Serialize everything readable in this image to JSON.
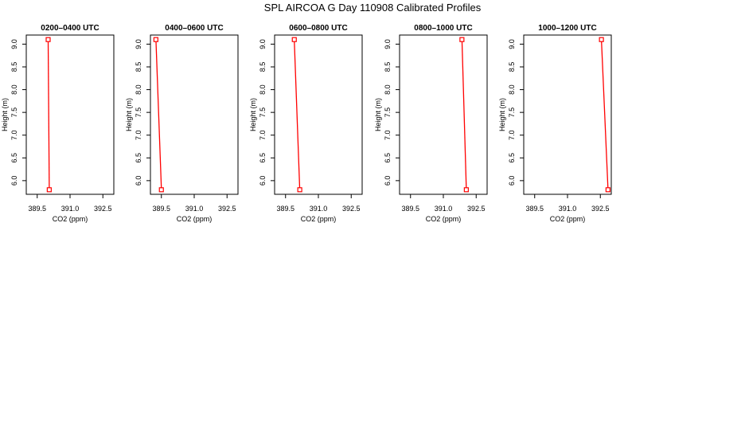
{
  "page": {
    "title": "SPL AIRCOA G  Day 110908  Calibrated Profiles"
  },
  "style": {
    "series_color": "#ff0000",
    "axis_color": "#000000"
  },
  "chart_data": [
    {
      "type": "line",
      "title": "0200–0400 UTC",
      "xlabel": "CO2 (ppm)",
      "ylabel": "Height (m)",
      "xlim": [
        389.0,
        393.0
      ],
      "ylim": [
        5.7,
        9.2
      ],
      "xticks": [
        389.5,
        391.0,
        392.5
      ],
      "xtick_labels": [
        "389.5",
        "391.0",
        "392.5"
      ],
      "yticks": [
        6.0,
        6.5,
        7.0,
        7.5,
        8.0,
        8.5,
        9.0
      ],
      "ytick_labels": [
        "6.0",
        "6.5",
        "7.0",
        "7.5",
        "8.0",
        "8.5",
        "9.0"
      ],
      "grid": false,
      "points": [
        {
          "x": 390.0,
          "y": 9.1
        },
        {
          "x": 390.05,
          "y": 5.8
        }
      ]
    },
    {
      "type": "line",
      "title": "0400–0600 UTC",
      "xlabel": "CO2 (ppm)",
      "ylabel": "Height (m)",
      "xlim": [
        389.0,
        393.0
      ],
      "ylim": [
        5.7,
        9.2
      ],
      "xticks": [
        389.5,
        391.0,
        392.5
      ],
      "xtick_labels": [
        "389.5",
        "391.0",
        "392.5"
      ],
      "yticks": [
        6.0,
        6.5,
        7.0,
        7.5,
        8.0,
        8.5,
        9.0
      ],
      "ytick_labels": [
        "6.0",
        "6.5",
        "7.0",
        "7.5",
        "8.0",
        "8.5",
        "9.0"
      ],
      "grid": false,
      "points": [
        {
          "x": 389.25,
          "y": 9.1
        },
        {
          "x": 389.5,
          "y": 5.8
        }
      ]
    },
    {
      "type": "line",
      "title": "0600–0800 UTC",
      "xlabel": "CO2 (ppm)",
      "ylabel": "Height (m)",
      "xlim": [
        389.0,
        393.0
      ],
      "ylim": [
        5.7,
        9.2
      ],
      "xticks": [
        389.5,
        391.0,
        392.5
      ],
      "xtick_labels": [
        "389.5",
        "391.0",
        "392.5"
      ],
      "yticks": [
        6.0,
        6.5,
        7.0,
        7.5,
        8.0,
        8.5,
        9.0
      ],
      "ytick_labels": [
        "6.0",
        "6.5",
        "7.0",
        "7.5",
        "8.0",
        "8.5",
        "9.0"
      ],
      "grid": false,
      "points": [
        {
          "x": 389.9,
          "y": 9.1
        },
        {
          "x": 390.15,
          "y": 5.8
        }
      ]
    },
    {
      "type": "line",
      "title": "0800–1000 UTC",
      "xlabel": "CO2 (ppm)",
      "ylabel": "Height (m)",
      "xlim": [
        389.0,
        393.0
      ],
      "ylim": [
        5.7,
        9.2
      ],
      "xticks": [
        389.5,
        391.0,
        392.5
      ],
      "xtick_labels": [
        "389.5",
        "391.0",
        "392.5"
      ],
      "yticks": [
        6.0,
        6.5,
        7.0,
        7.5,
        8.0,
        8.5,
        9.0
      ],
      "ytick_labels": [
        "6.0",
        "6.5",
        "7.0",
        "7.5",
        "8.0",
        "8.5",
        "9.0"
      ],
      "grid": false,
      "points": [
        {
          "x": 391.85,
          "y": 9.1
        },
        {
          "x": 392.05,
          "y": 5.8
        }
      ]
    },
    {
      "type": "line",
      "title": "1000–1200 UTC",
      "xlabel": "CO2 (ppm)",
      "ylabel": "Height (m)",
      "xlim": [
        389.0,
        393.0
      ],
      "ylim": [
        5.7,
        9.2
      ],
      "xticks": [
        389.5,
        391.0,
        392.5
      ],
      "xtick_labels": [
        "389.5",
        "391.0",
        "392.5"
      ],
      "yticks": [
        6.0,
        6.5,
        7.0,
        7.5,
        8.0,
        8.5,
        9.0
      ],
      "ytick_labels": [
        "6.0",
        "6.5",
        "7.0",
        "7.5",
        "8.0",
        "8.5",
        "9.0"
      ],
      "grid": false,
      "points": [
        {
          "x": 392.55,
          "y": 9.1
        },
        {
          "x": 392.85,
          "y": 5.8
        }
      ]
    }
  ]
}
